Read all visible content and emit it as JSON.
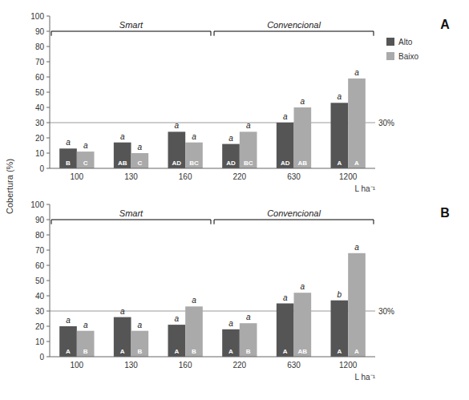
{
  "chart_data": [
    {
      "type": "bar",
      "title": "A",
      "y_label": "Cobertura (%)",
      "x_label": "L ha⁻¹",
      "categories": [
        100,
        130,
        160,
        220,
        630,
        1200
      ],
      "series": [
        {
          "name": "Alto",
          "color": "#555555",
          "values": [
            13,
            17,
            24,
            16,
            30,
            43
          ],
          "upper_labels": [
            "a",
            "a",
            "a",
            "a",
            "a",
            "a"
          ],
          "lower_labels": [
            "B",
            "AB",
            "AD",
            "AD",
            "AD",
            "A"
          ]
        },
        {
          "name": "Baixo",
          "color": "#aaaaaa",
          "values": [
            11,
            10,
            17,
            24,
            40,
            59
          ],
          "upper_labels": [
            "a",
            "a",
            "a",
            "a",
            "a",
            "a"
          ],
          "lower_labels": [
            "C",
            "C",
            "BC",
            "BC",
            "AB",
            "A"
          ]
        }
      ],
      "reference_line": {
        "value": 30,
        "label": "30%"
      },
      "groups": [
        {
          "label": "Smart",
          "categories": [
            100,
            130,
            160
          ]
        },
        {
          "label": "Convencional",
          "categories": [
            220,
            630,
            1200
          ]
        }
      ],
      "ylim": [
        0,
        100
      ],
      "yticks": [
        0,
        10,
        20,
        30,
        40,
        50,
        60,
        70,
        80,
        90,
        100
      ],
      "grid": false,
      "legend": "right"
    },
    {
      "type": "bar",
      "title": "B",
      "x_label": "L ha⁻¹",
      "categories": [
        100,
        130,
        160,
        220,
        630,
        1200
      ],
      "series": [
        {
          "color": "#555555",
          "values": [
            20,
            26,
            21,
            18,
            35,
            37
          ],
          "upper_labels": [
            "a",
            "a",
            "a",
            "a",
            "a",
            "b"
          ],
          "lower_labels": [
            "A",
            "A",
            "A",
            "A",
            "A",
            "A"
          ]
        },
        {
          "color": "#aaaaaa",
          "values": [
            17,
            17,
            33,
            22,
            42,
            68
          ],
          "upper_labels": [
            "a",
            "a",
            "a",
            "a",
            "a",
            "a"
          ],
          "lower_labels": [
            "B",
            "B",
            "B",
            "B",
            "AB",
            "A"
          ]
        }
      ],
      "reference_line": {
        "value": 30,
        "label": "30%"
      },
      "groups": [
        {
          "label": "Smart",
          "categories": [
            100,
            130,
            160
          ]
        },
        {
          "label": "Convencional",
          "categories": [
            220,
            630,
            1200
          ]
        }
      ],
      "ylim": [
        0,
        100
      ],
      "yticks": [
        0,
        10,
        20,
        30,
        40,
        50,
        60,
        70,
        80,
        90,
        100
      ],
      "grid": false
    }
  ]
}
